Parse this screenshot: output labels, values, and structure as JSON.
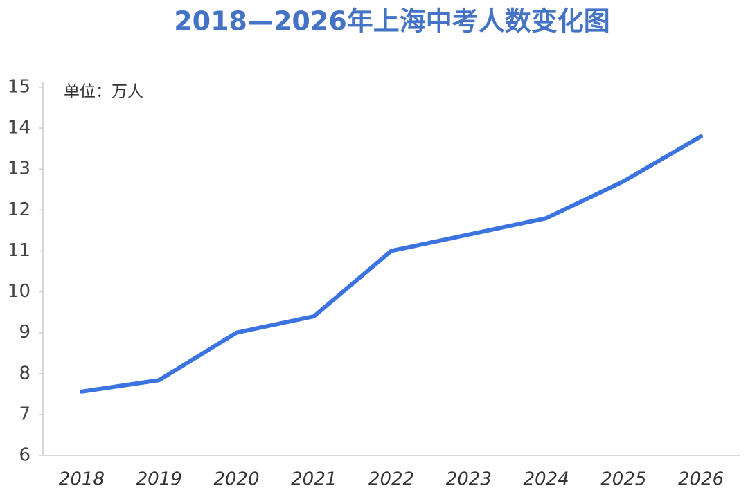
{
  "chart_data": {
    "type": "line",
    "title": "2018—2026年上海中考人数变化图",
    "unit_label": "单位：万人",
    "categories": [
      "2018",
      "2019",
      "2020",
      "2021",
      "2022",
      "2023",
      "2024",
      "2025",
      "2026"
    ],
    "values": [
      7.56,
      7.84,
      9.0,
      9.4,
      11.0,
      11.4,
      11.8,
      12.7,
      13.8
    ],
    "color": "#3b73e0",
    "title_color": "#4472c4",
    "ylim": [
      6,
      15
    ],
    "yticks": [
      6,
      7,
      8,
      9,
      10,
      11,
      12,
      13,
      14,
      15
    ],
    "grid": false,
    "drop_lines": true
  }
}
